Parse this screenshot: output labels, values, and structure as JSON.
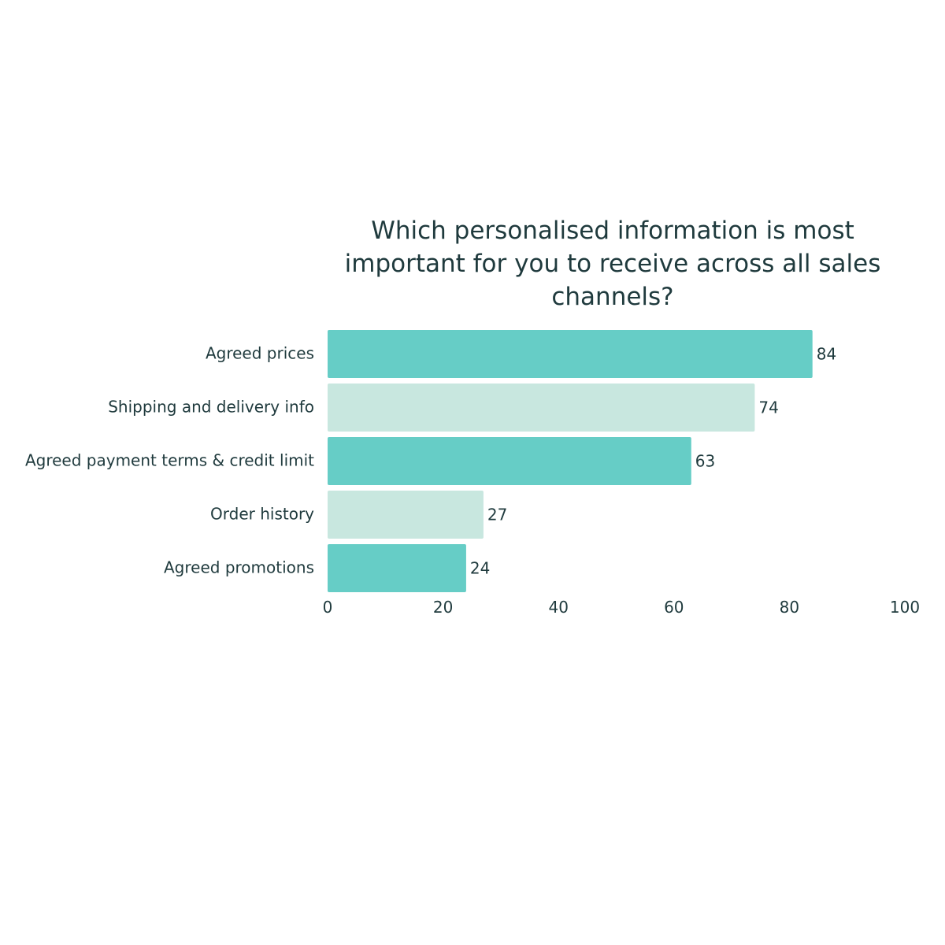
{
  "chart_data": {
    "type": "bar",
    "orientation": "horizontal",
    "title": "Which personalised information is most important for you to receive across all sales channels?",
    "categories": [
      "Agreed prices",
      "Shipping and delivery info",
      "Agreed payment terms & credit limit",
      "Order history",
      "Agreed promotions"
    ],
    "values": [
      84,
      74,
      63,
      27,
      24
    ],
    "bar_colors": [
      "#66cdc6",
      "#c8e7df",
      "#66cdc6",
      "#c8e7df",
      "#66cdc6"
    ],
    "xlim": [
      0,
      100
    ],
    "xticks": [
      0,
      20,
      40,
      60,
      80,
      100
    ],
    "xlabel": "",
    "ylabel": "",
    "grid": false,
    "legend": "none",
    "data_labels": true
  },
  "colors": {
    "text": "#1f3a3d",
    "bar_primary": "#66cdc6",
    "bar_secondary": "#c8e7df"
  }
}
